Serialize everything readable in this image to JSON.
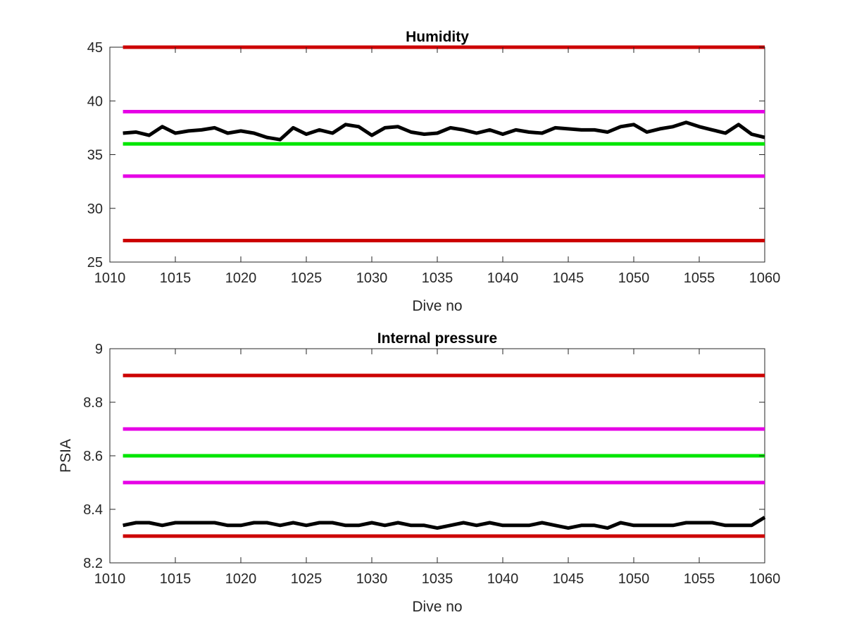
{
  "chart_data": [
    {
      "type": "line",
      "title": "Humidity",
      "xlabel": "Dive no",
      "ylabel": "",
      "xlim": [
        1010,
        1060
      ],
      "ylim": [
        25,
        45
      ],
      "xticks": [
        1010,
        1015,
        1020,
        1025,
        1030,
        1035,
        1040,
        1045,
        1050,
        1055,
        1060
      ],
      "yticks": [
        25,
        30,
        35,
        40,
        45
      ],
      "grid": false,
      "legend": "none",
      "reference_lines": [
        {
          "y": 45,
          "color": "#cc0000"
        },
        {
          "y": 39,
          "color": "#e600e6"
        },
        {
          "y": 36,
          "color": "#00e600"
        },
        {
          "y": 33,
          "color": "#e600e6"
        },
        {
          "y": 27,
          "color": "#cc0000"
        }
      ],
      "series": [
        {
          "color": "#000000",
          "x": [
            1011,
            1012,
            1013,
            1014,
            1015,
            1016,
            1017,
            1018,
            1019,
            1020,
            1021,
            1022,
            1023,
            1024,
            1025,
            1026,
            1027,
            1028,
            1029,
            1030,
            1031,
            1032,
            1033,
            1034,
            1035,
            1036,
            1037,
            1038,
            1039,
            1040,
            1041,
            1042,
            1043,
            1044,
            1045,
            1046,
            1047,
            1048,
            1049,
            1050,
            1051,
            1052,
            1053,
            1054,
            1055,
            1056,
            1057,
            1058,
            1059,
            1060
          ],
          "values": [
            37.0,
            37.1,
            36.8,
            37.6,
            37.0,
            37.2,
            37.3,
            37.5,
            37.0,
            37.2,
            37.0,
            36.6,
            36.4,
            37.5,
            36.9,
            37.3,
            37.0,
            37.8,
            37.6,
            36.8,
            37.5,
            37.6,
            37.1,
            36.9,
            37.0,
            37.5,
            37.3,
            37.0,
            37.3,
            36.9,
            37.3,
            37.1,
            37.0,
            37.5,
            37.4,
            37.3,
            37.3,
            37.1,
            37.6,
            37.8,
            37.1,
            37.4,
            37.6,
            38.0,
            37.6,
            37.3,
            37.0,
            37.8,
            36.9,
            36.6
          ]
        }
      ]
    },
    {
      "type": "line",
      "title": "Internal pressure",
      "xlabel": "Dive no",
      "ylabel": "PSIA",
      "xlim": [
        1010,
        1060
      ],
      "ylim": [
        8.2,
        9.0
      ],
      "xticks": [
        1010,
        1015,
        1020,
        1025,
        1030,
        1035,
        1040,
        1045,
        1050,
        1055,
        1060
      ],
      "yticks": [
        "8.2",
        "8.4",
        "8.6",
        "8.8",
        "9"
      ],
      "grid": false,
      "legend": "none",
      "reference_lines": [
        {
          "y": 8.9,
          "color": "#cc0000"
        },
        {
          "y": 8.7,
          "color": "#e600e6"
        },
        {
          "y": 8.6,
          "color": "#00e600"
        },
        {
          "y": 8.5,
          "color": "#e600e6"
        },
        {
          "y": 8.3,
          "color": "#cc0000"
        }
      ],
      "series": [
        {
          "color": "#000000",
          "x": [
            1011,
            1012,
            1013,
            1014,
            1015,
            1016,
            1017,
            1018,
            1019,
            1020,
            1021,
            1022,
            1023,
            1024,
            1025,
            1026,
            1027,
            1028,
            1029,
            1030,
            1031,
            1032,
            1033,
            1034,
            1035,
            1036,
            1037,
            1038,
            1039,
            1040,
            1041,
            1042,
            1043,
            1044,
            1045,
            1046,
            1047,
            1048,
            1049,
            1050,
            1051,
            1052,
            1053,
            1054,
            1055,
            1056,
            1057,
            1058,
            1059,
            1060
          ],
          "values": [
            8.34,
            8.35,
            8.35,
            8.34,
            8.35,
            8.35,
            8.35,
            8.35,
            8.34,
            8.34,
            8.35,
            8.35,
            8.34,
            8.35,
            8.34,
            8.35,
            8.35,
            8.34,
            8.34,
            8.35,
            8.34,
            8.35,
            8.34,
            8.34,
            8.33,
            8.34,
            8.35,
            8.34,
            8.35,
            8.34,
            8.34,
            8.34,
            8.35,
            8.34,
            8.33,
            8.34,
            8.34,
            8.33,
            8.35,
            8.34,
            8.34,
            8.34,
            8.34,
            8.35,
            8.35,
            8.35,
            8.34,
            8.34,
            8.34,
            8.37
          ]
        }
      ]
    }
  ]
}
